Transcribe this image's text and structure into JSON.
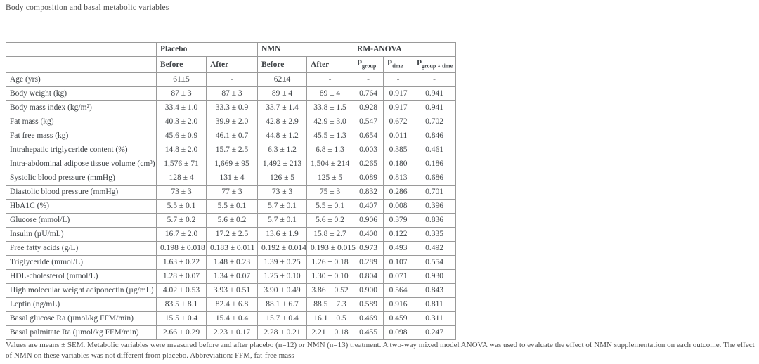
{
  "caption": "Body composition and basal metabolic variables",
  "table": {
    "groups": [
      {
        "label": "Placebo",
        "span": 2
      },
      {
        "label": "NMN",
        "span": 2
      },
      {
        "label": "RM-ANOVA",
        "span": 3
      }
    ],
    "sub_headers": [
      "Before",
      "After",
      "Before",
      "After"
    ],
    "p_cols": [
      {
        "base": "P",
        "sub": "group"
      },
      {
        "base": "P",
        "sub": "time"
      },
      {
        "base": "P",
        "sub": "group × time"
      }
    ],
    "rows": [
      {
        "label": "Age (yrs)",
        "cells": [
          "61±5",
          "-",
          "62±4",
          "-",
          "-",
          "-",
          "-"
        ]
      },
      {
        "label": "Body weight (kg)",
        "cells": [
          "87 ± 3",
          "87 ± 3",
          "89 ± 4",
          "89 ± 4",
          "0.764",
          "0.917",
          "0.941"
        ]
      },
      {
        "label": "Body mass index (kg/m²)",
        "cells": [
          "33.4 ± 1.0",
          "33.3 ± 0.9",
          "33.7 ± 1.4",
          "33.8 ± 1.5",
          "0.928",
          "0.917",
          "0.941"
        ]
      },
      {
        "label": "Fat mass (kg)",
        "cells": [
          "40.3 ± 2.0",
          "39.9 ± 2.0",
          "42.8 ± 2.9",
          "42.9 ± 3.0",
          "0.547",
          "0.672",
          "0.702"
        ]
      },
      {
        "label": "Fat free mass (kg)",
        "cells": [
          "45.6 ± 0.9",
          "46.1 ± 0.7",
          "44.8 ± 1.2",
          "45.5 ± 1.3",
          "0.654",
          "0.011",
          "0.846"
        ]
      },
      {
        "label": "Intrahepatic triglyceride content (%)",
        "cells": [
          "14.8 ± 2.0",
          "15.7 ± 2.5",
          "6.3 ± 1.2",
          "6.8 ± 1.3",
          "0.003",
          "0.385",
          "0.461"
        ]
      },
      {
        "label": "Intra-abdominal adipose tissue volume (cm³)",
        "cells": [
          "1,576 ± 71",
          "1,669 ± 95",
          "1,492 ± 213",
          "1,504 ± 214",
          "0.265",
          "0.180",
          "0.186"
        ]
      },
      {
        "label": "Systolic blood pressure (mmHg)",
        "cells": [
          "128 ± 4",
          "131 ± 4",
          "126 ± 5",
          "125 ± 5",
          "0.089",
          "0.813",
          "0.686"
        ]
      },
      {
        "label": "Diastolic blood pressure (mmHg)",
        "cells": [
          "73 ± 3",
          "77 ± 3",
          "73 ± 3",
          "75 ± 3",
          "0.832",
          "0.286",
          "0.701"
        ]
      },
      {
        "label": "HbA1C (%)",
        "cells": [
          "5.5 ± 0.1",
          "5.5 ± 0.1",
          "5.7 ± 0.1",
          "5.5 ± 0.1",
          "0.407",
          "0.008",
          "0.396"
        ]
      },
      {
        "label": "Glucose (mmol/L)",
        "cells": [
          "5.7 ± 0.2",
          "5.6 ± 0.2",
          "5.7 ± 0.1",
          "5.6 ± 0.2",
          "0.906",
          "0.379",
          "0.836"
        ]
      },
      {
        "label": "Insulin (µU/mL)",
        "cells": [
          "16.7 ± 2.0",
          "17.2 ± 2.5",
          "13.6 ± 1.9",
          "15.8 ± 2.7",
          "0.400",
          "0.122",
          "0.335"
        ]
      },
      {
        "label": "Free fatty acids (g/L)",
        "cells": [
          "0.198 ± 0.018",
          "0.183 ± 0.011",
          "0.192 ± 0.014",
          "0.193 ± 0.015",
          "0.973",
          "0.493",
          "0.492"
        ]
      },
      {
        "label": "Triglyceride (mmol/L)",
        "cells": [
          "1.63 ± 0.22",
          "1.48 ± 0.23",
          "1.39 ± 0.25",
          "1.26 ± 0.18",
          "0.289",
          "0.107",
          "0.554"
        ]
      },
      {
        "label": "HDL-cholesterol (mmol/L)",
        "cells": [
          "1.28 ± 0.07",
          "1.34 ± 0.07",
          "1.25 ± 0.10",
          "1.30 ± 0.10",
          "0.804",
          "0.071",
          "0.930"
        ]
      },
      {
        "label": "High molecular weight adiponectin (µg/mL)",
        "cells": [
          "4.02 ± 0.53",
          "3.93 ± 0.51",
          "3.90 ± 0.49",
          "3.86 ± 0.52",
          "0.900",
          "0.564",
          "0.843"
        ]
      },
      {
        "label": "Leptin (ng/mL)",
        "cells": [
          "83.5 ± 8.1",
          "82.4 ± 6.8",
          "88.1 ± 6.7",
          "88.5 ± 7.3",
          "0.589",
          "0.916",
          "0.811"
        ]
      },
      {
        "label": "Basal glucose Ra (µmol/kg FFM/min)",
        "cells": [
          "15.5 ± 0.4",
          "15.4 ± 0.4",
          "15.7 ± 0.4",
          "16.1 ± 0.5",
          "0.469",
          "0.459",
          "0.311"
        ]
      },
      {
        "label": "Basal palmitate Ra (µmol/kg FFM/min)",
        "cells": [
          "2.66 ± 0.29",
          "2.23 ± 0.17",
          "2.28 ± 0.21",
          "2.21 ± 0.18",
          "0.455",
          "0.098",
          "0.247"
        ]
      }
    ]
  },
  "footnote": "Values are means ± SEM. Metabolic variables were measured before and after placebo (n=12) or NMN (n=13) treatment. A two-way mixed model ANOVA was used to evaluate the effect of NMN supplementation on each outcome. The effect of NMN on these variables was not different from placebo. Abbreviation: FFM, fat-free mass"
}
